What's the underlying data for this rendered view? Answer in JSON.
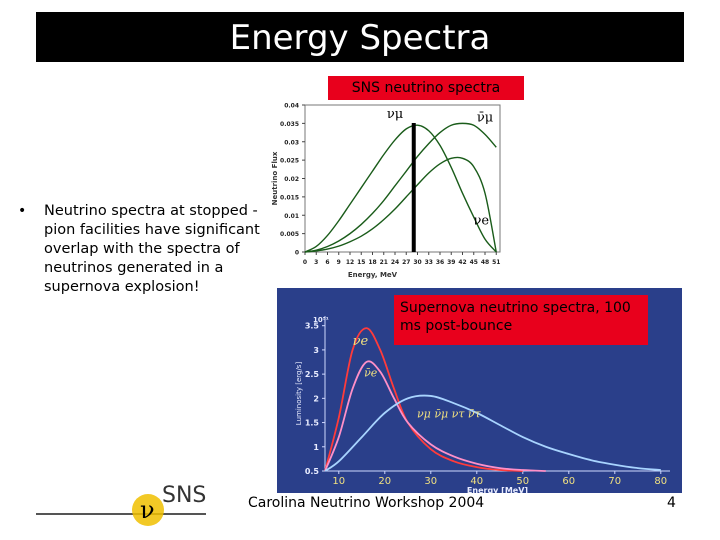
{
  "slide": {
    "title": "Energy Spectra",
    "sns_label": "SNS neutrino spectra",
    "supernova_label": "Supernova neutrino spectra, 100 ms post-bounce",
    "bullet_marker": "•",
    "bullet_text": "Neutrino spectra at stopped -pion facilities have significant overlap with the spectra of neutrinos generated in a supernova explosion!",
    "footer": "Carolina Neutrino Workshop 2004",
    "page_number": "4",
    "logo_text": "SNS",
    "logo_symbol": "ν"
  },
  "chart_data": [
    {
      "type": "line",
      "ylabel": "Neutrino Flux",
      "xlabel": "Energy, MeV",
      "x_ticks": [
        "0",
        "3",
        "6",
        "9",
        "12",
        "15",
        "18",
        "21",
        "24",
        "27",
        "30",
        "33",
        "36",
        "39",
        "42",
        "45",
        "48",
        "51"
      ],
      "y_ticks": [
        "0",
        "0.005",
        "0.01",
        "0.015",
        "0.02",
        "0.025",
        "0.03",
        "0.035",
        "0.04"
      ],
      "xlim": [
        0,
        52
      ],
      "ylim": [
        0,
        0.04
      ],
      "grid": false,
      "series": [
        {
          "name": "νμ",
          "color": "#1a5c1a",
          "x": [
            0,
            3,
            6,
            9,
            12,
            15,
            18,
            21,
            24,
            27,
            30,
            33,
            36,
            39,
            42,
            45,
            48,
            51
          ],
          "y": [
            0,
            0.0015,
            0.0045,
            0.0085,
            0.013,
            0.0175,
            0.022,
            0.0265,
            0.0305,
            0.0335,
            0.0345,
            0.033,
            0.029,
            0.023,
            0.016,
            0.0095,
            0.0035,
            0
          ]
        },
        {
          "name": "ν̄μ",
          "color": "#1a5c1a",
          "x": [
            0,
            3,
            6,
            9,
            12,
            15,
            18,
            21,
            24,
            27,
            30,
            33,
            36,
            39,
            42,
            45,
            48,
            51
          ],
          "y": [
            0,
            0.0005,
            0.0015,
            0.003,
            0.005,
            0.0075,
            0.0105,
            0.014,
            0.018,
            0.022,
            0.026,
            0.0295,
            0.0325,
            0.0345,
            0.035,
            0.0345,
            0.032,
            0.0285
          ]
        },
        {
          "name": "νe",
          "color": "#1a5c1a",
          "x": [
            0,
            3,
            6,
            9,
            12,
            15,
            18,
            21,
            24,
            27,
            30,
            33,
            36,
            39,
            42,
            45,
            48,
            51
          ],
          "y": [
            0,
            0.0003,
            0.0008,
            0.0016,
            0.0028,
            0.0043,
            0.0063,
            0.0088,
            0.0117,
            0.015,
            0.0183,
            0.0215,
            0.024,
            0.0255,
            0.0255,
            0.0232,
            0.016,
            0
          ]
        }
      ],
      "marker_line_x": 29,
      "legend": [
        {
          "label": "νμ",
          "position": "top"
        },
        {
          "label": "ν̄μ",
          "position": "top-right"
        },
        {
          "label": "νe",
          "position": "right"
        }
      ]
    },
    {
      "type": "line",
      "ylabel": "Luminosity [erg/s]",
      "xlabel": "Energy [MeV]",
      "y_scale_label": "10⁵¹",
      "x_ticks": [
        "10",
        "20",
        "30",
        "40",
        "50",
        "60",
        "70",
        "80"
      ],
      "y_ticks": [
        "0.5",
        "1",
        "1.5",
        "2",
        "2.5",
        "3",
        "3.5"
      ],
      "xlim": [
        7,
        82
      ],
      "ylim": [
        0.5,
        3.7
      ],
      "grid": false,
      "background": "#2a3f8a",
      "series": [
        {
          "name": "ν̄e",
          "color": "#ff3b3b",
          "x": [
            7,
            10,
            13,
            16,
            19,
            22,
            25,
            30,
            35,
            40,
            45,
            50
          ],
          "y": [
            0.5,
            1.6,
            3.0,
            3.45,
            3.0,
            2.2,
            1.5,
            0.95,
            0.7,
            0.58,
            0.52,
            0.5
          ]
        },
        {
          "name": "νe",
          "color": "#ff90c8",
          "x": [
            7,
            10,
            13,
            16,
            19,
            22,
            25,
            30,
            35,
            40,
            45,
            50,
            55
          ],
          "y": [
            0.5,
            1.2,
            2.2,
            2.75,
            2.55,
            2.0,
            1.5,
            1.05,
            0.8,
            0.65,
            0.56,
            0.52,
            0.5
          ]
        },
        {
          "name": "νμ ν̄μ ντ ν̄τ",
          "color": "#a8d4ff",
          "x": [
            7,
            10,
            15,
            20,
            25,
            30,
            35,
            40,
            45,
            50,
            55,
            60,
            65,
            70,
            75,
            80
          ],
          "y": [
            0.5,
            0.7,
            1.2,
            1.7,
            2.0,
            2.05,
            1.9,
            1.7,
            1.45,
            1.2,
            1.0,
            0.85,
            0.72,
            0.63,
            0.56,
            0.52
          ]
        }
      ],
      "legend": [
        {
          "label": "νe",
          "position": "upper-left"
        },
        {
          "label": "ν̄e",
          "position": "upper-left"
        },
        {
          "label": "νμ ν̄μ ντ ν̄τ",
          "position": "center"
        }
      ]
    }
  ]
}
